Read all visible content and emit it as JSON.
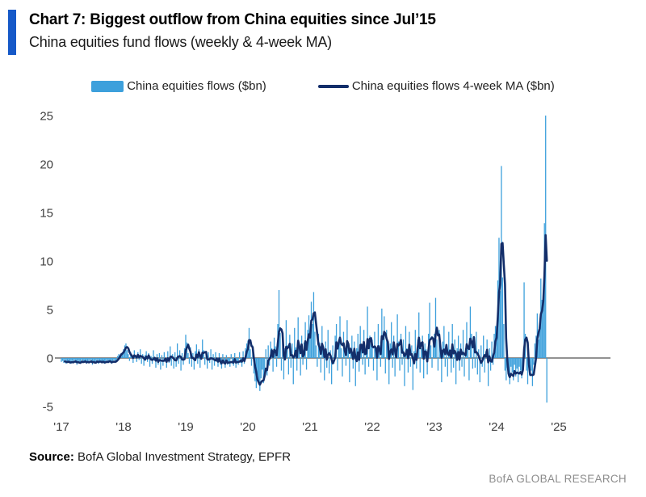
{
  "header": {
    "title": "Chart 7: Biggest outflow from China equities since Jul’15",
    "subtitle": "China equities fund flows (weekly & 4-week MA)"
  },
  "legend": {
    "bars_label": "China equities flows ($bn)",
    "line_label": "China equities flows 4-week MA ($bn)"
  },
  "footer": {
    "source_label": "Source:",
    "source_text": " BofA Global Investment Strategy, EPFR",
    "brand": "BofA GLOBAL RESEARCH"
  },
  "colors": {
    "bars": "#3DA0DC",
    "line": "#132E6A",
    "accent_bar": "#1659C8",
    "axis": "#6E6E6E",
    "tick_text": "#404040",
    "brand_text": "#8C8C8C"
  },
  "chart_data": {
    "type": "bar",
    "title": "China equities fund flows (weekly & 4-week MA)",
    "unit": "$bn",
    "ylim": [
      -5,
      25
    ],
    "yticks": [
      25,
      20,
      15,
      10,
      5,
      0,
      -5
    ],
    "x_tick_labels": [
      "'17",
      "'18",
      "'19",
      "'20",
      "'21",
      "'22",
      "'23",
      "'24",
      "'25"
    ],
    "x_start_year": 2017,
    "weeks_per_year": 52,
    "grid": false,
    "legend_position": "top-center",
    "series": [
      {
        "name": "China equities flows ($bn)",
        "type": "bar",
        "values": [
          -0.4,
          -0.3,
          -0.5,
          -0.2,
          -0.6,
          -0.4,
          -0.3,
          -0.5,
          -0.6,
          -0.3,
          -0.4,
          -0.2,
          -0.5,
          -0.7,
          -0.3,
          -0.4,
          -0.6,
          -0.2,
          -0.5,
          -0.3,
          -0.4,
          -0.6,
          -0.3,
          -0.5,
          -0.2,
          -0.4,
          -0.7,
          -0.3,
          -0.5,
          -0.4,
          -0.2,
          -0.6,
          -0.3,
          -0.4,
          -0.5,
          -0.3,
          -0.6,
          -0.4,
          -0.2,
          -0.5,
          -0.3,
          -0.4,
          -0.6,
          -0.3,
          -0.2,
          -0.5,
          -0.4,
          0.2,
          0.4,
          0.3,
          0.5,
          0.6,
          0.9,
          1.3,
          1.5,
          0.8,
          0.4,
          -0.3,
          0.6,
          0.2,
          -0.5,
          0.8,
          0.3,
          -0.4,
          0.6,
          -0.2,
          0.9,
          -0.6,
          0.4,
          -0.8,
          0.3,
          0.7,
          -0.4,
          0.5,
          -0.9,
          0.2,
          -0.6,
          0.8,
          -0.3,
          -1.0,
          0.4,
          -0.7,
          0.5,
          -1.2,
          0.3,
          -0.8,
          0.6,
          -0.4,
          -1.0,
          0.7,
          -0.5,
          1.2,
          -0.8,
          0.4,
          -1.1,
          0.6,
          -0.9,
          1.5,
          -0.6,
          0.8,
          -1.3,
          0.5,
          -0.7,
          1.0,
          2.4,
          1.6,
          0.5,
          -0.6,
          1.1,
          -0.9,
          0.5,
          -1.2,
          0.7,
          1.4,
          -0.6,
          0.9,
          -1.0,
          0.4,
          1.9,
          0.8,
          -0.7,
          0.5,
          -1.1,
          0.6,
          -0.5,
          0.9,
          -1.2,
          0.4,
          -0.8,
          0.6,
          -0.4,
          -0.9,
          0.5,
          -0.7,
          -1.1,
          0.4,
          -0.6,
          -1.0,
          0.3,
          -0.7,
          -0.5,
          -0.9,
          0.4,
          -0.6,
          -0.8,
          0.5,
          -1.0,
          -0.4,
          -0.7,
          0.6,
          -0.5,
          -0.9,
          0.7,
          -0.6,
          1.0,
          1.5,
          1.8,
          3.1,
          0.9,
          -0.8,
          1.3,
          -1.6,
          -2.4,
          -3.1,
          -1.8,
          -2.7,
          -3.4,
          -2.1,
          -1.2,
          -2.6,
          -1.5,
          0.9,
          -1.8,
          1.3,
          -0.8,
          1.7,
          1.0,
          -1.4,
          2.1,
          1.2,
          -0.9,
          3.5,
          7.0,
          2.6,
          -1.3,
          1.9,
          -2.2,
          1.0,
          3.9,
          1.3,
          -1.7,
          2.4,
          -1.0,
          1.5,
          -2.7,
          3.1,
          1.1,
          -1.3,
          4.2,
          0.9,
          -1.8,
          2.3,
          -0.7,
          1.6,
          3.7,
          -1.2,
          2.9,
          4.4,
          2.3,
          5.8,
          3.5,
          6.8,
          2.7,
          1.3,
          -0.9,
          2.5,
          1.6,
          -1.5,
          3.3,
          0.9,
          -2.3,
          1.7,
          -1.0,
          2.9,
          -1.6,
          0.8,
          -2.7,
          1.3,
          -0.6,
          2.3,
          3.5,
          -1.3,
          1.9,
          4.3,
          1.0,
          -1.9,
          2.7,
          1.2,
          -0.8,
          3.9,
          1.5,
          -2.5,
          0.9,
          2.3,
          -1.1,
          1.7,
          -2.9,
          1.0,
          2.5,
          -1.4,
          3.3,
          1.1,
          -0.7,
          2.9,
          -1.7,
          1.3,
          5.3,
          -0.9,
          2.3,
          1.5,
          1.9,
          -1.3,
          2.7,
          1.0,
          -2.3,
          3.5,
          1.3,
          -0.9,
          5.1,
          2.3,
          4.3,
          -1.6,
          2.9,
          1.0,
          -2.7,
          1.5,
          3.7,
          -1.0,
          2.3,
          -1.9,
          0.9,
          4.5,
          1.7,
          -1.3,
          2.5,
          -0.7,
          1.9,
          -2.9,
          3.3,
          1.0,
          -1.5,
          2.7,
          -0.9,
          1.3,
          -3.3,
          0.7,
          2.9,
          -1.1,
          1.9,
          4.7,
          -1.5,
          1.0,
          2.3,
          -2.1,
          1.5,
          0.9,
          -1.7,
          2.5,
          5.7,
          1.3,
          -1.0,
          1.9,
          2.5,
          6.2,
          1.9,
          -1.3,
          2.9,
          1.0,
          -2.5,
          1.7,
          3.3,
          -0.9,
          1.3,
          -1.9,
          2.7,
          0.9,
          -1.5,
          3.5,
          -1.0,
          1.9,
          -2.7,
          1.0,
          2.3,
          -1.3,
          1.5,
          -0.9,
          2.9,
          -1.9,
          1.0,
          3.7,
          1.3,
          -2.3,
          5.3,
          2.5,
          -1.1,
          1.9,
          -1.0,
          2.7,
          -1.7,
          0.9,
          -2.5,
          1.3,
          -0.9,
          2.3,
          -1.5,
          0.7,
          1.9,
          -2.9,
          1.0,
          -1.3,
          1.7,
          -0.7,
          2.5,
          3.3,
          3.3,
          8.0,
          12.4,
          6.9,
          19.8,
          8.3,
          3.5,
          -1.3,
          -2.3,
          -1.0,
          -1.9,
          -2.7,
          -0.9,
          -1.5,
          -2.3,
          -0.7,
          -1.9,
          -1.1,
          -2.5,
          -0.9,
          -1.3,
          -2.1,
          -0.6,
          7.8,
          2.5,
          -1.3,
          -2.7,
          -1.0,
          -1.9,
          -1.3,
          -2.9,
          -0.7,
          1.5,
          2.3,
          4.6,
          1.9,
          3.4,
          8.2,
          6.0,
          5.8,
          13.9,
          25.0,
          -4.6
        ]
      },
      {
        "name": "China equities flows 4-week MA ($bn)",
        "type": "line",
        "derived_from": "4-week moving average of the weekly bar series"
      }
    ]
  }
}
